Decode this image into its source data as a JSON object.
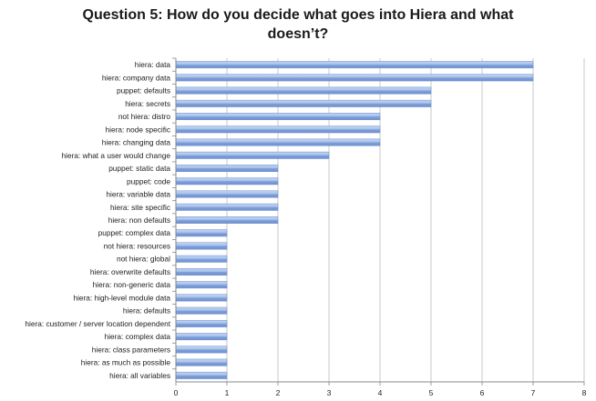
{
  "chart_data": {
    "type": "bar",
    "orientation": "horizontal",
    "title_lines": [
      "Question 5: How do you decide what goes into Hiera and what",
      "doesn’t?"
    ],
    "categories": [
      "hiera: data",
      "hiera: company data",
      "puppet: defaults",
      "hiera: secrets",
      "not hiera: distro",
      "hiera: node specific",
      "hiera: changing data",
      "hiera: what a user would change",
      "puppet: static data",
      "puppet: code",
      "hiera: variable data",
      "hiera: site specific",
      "hiera: non defaults",
      "puppet: complex data",
      "not hiera: resources",
      "not hiera: global",
      "hiera: overwrite defaults",
      "hiera: non-generic data",
      "hiera: high-level module data",
      "hiera: defaults",
      "hiera: customer / server location dependent",
      "hiera: complex data",
      "hiera: class parameters",
      "hiera: as much as possible",
      "hiera: all variables"
    ],
    "values": [
      7,
      7,
      5,
      5,
      4,
      4,
      4,
      3,
      2,
      2,
      2,
      2,
      2,
      1,
      1,
      1,
      1,
      1,
      1,
      1,
      1,
      1,
      1,
      1,
      1
    ],
    "xlim": [
      0,
      8
    ],
    "xticks": [
      "0",
      "1",
      "2",
      "3",
      "4",
      "5",
      "6",
      "7",
      "8"
    ],
    "grid": true,
    "legend": "none",
    "bar_color": "#8eaee0"
  }
}
